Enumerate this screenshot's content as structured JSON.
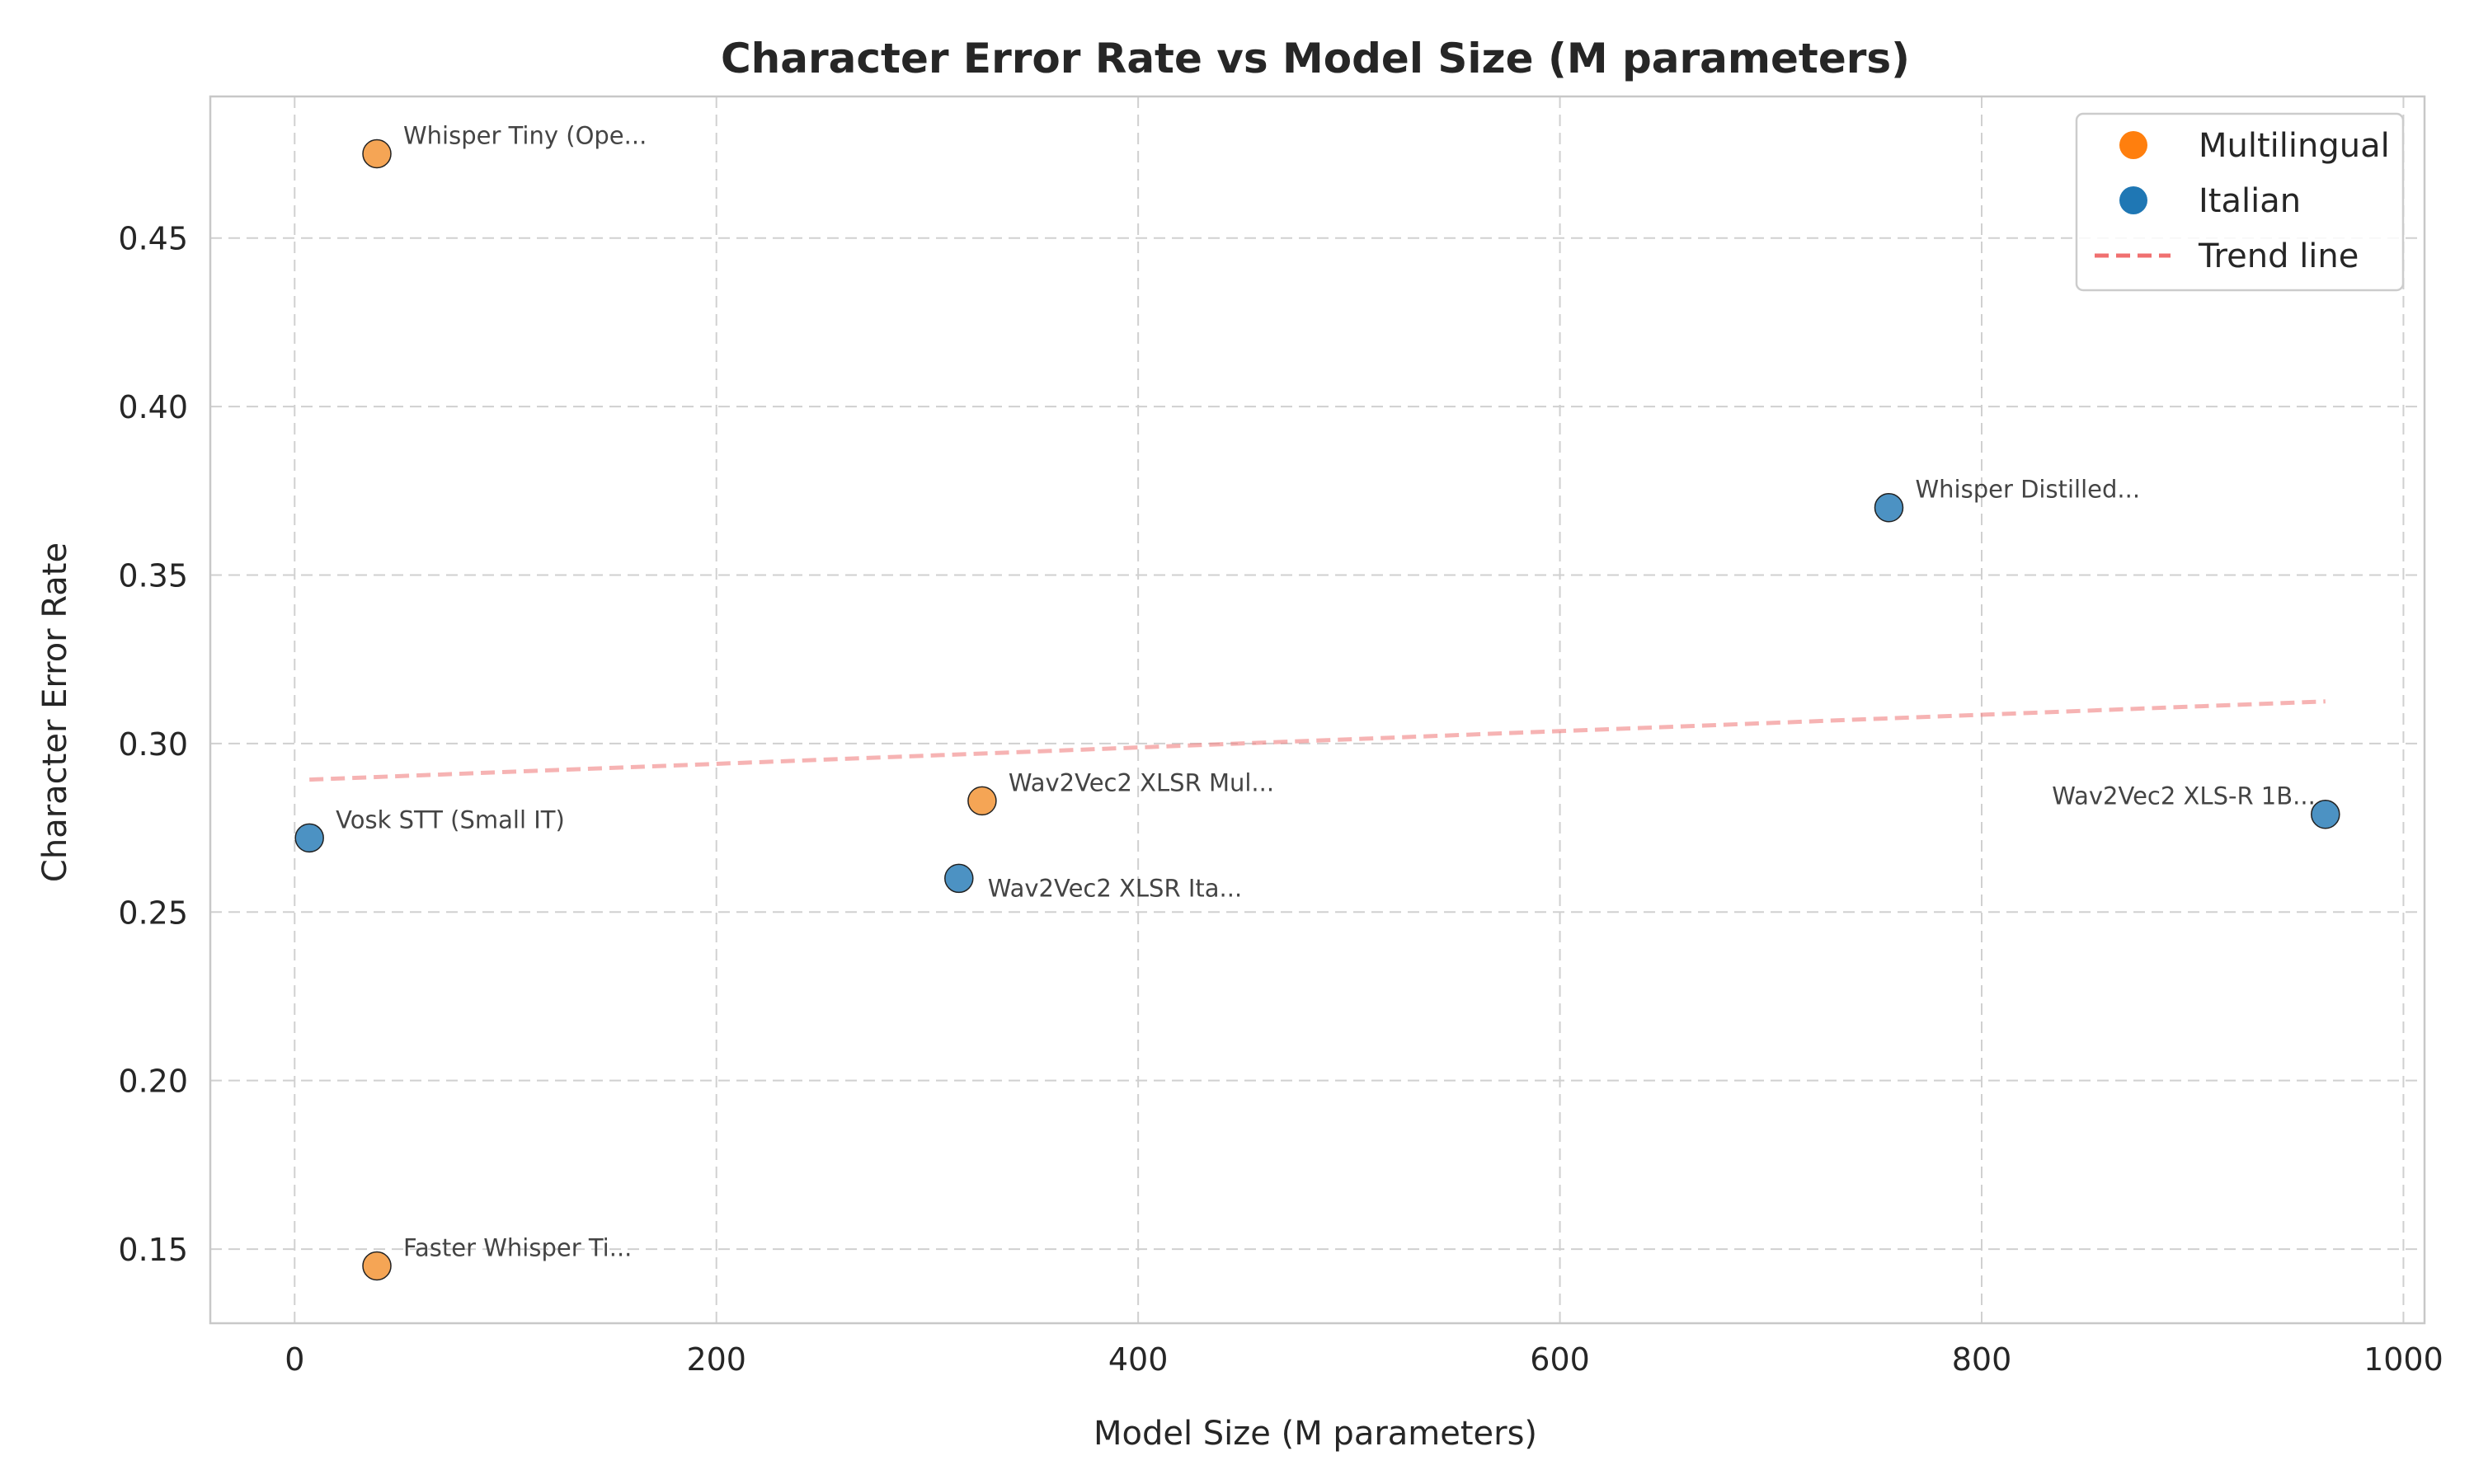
{
  "chart_data": {
    "type": "scatter",
    "title": "Character Error Rate vs Model Size (M parameters)",
    "xlabel": "Model Size (M parameters)",
    "ylabel": "Character Error Rate",
    "xlim": [
      -40,
      1010
    ],
    "ylim": [
      0.128,
      0.492
    ],
    "x_ticks": [
      0,
      200,
      400,
      600,
      800,
      1000
    ],
    "y_ticks": [
      0.15,
      0.2,
      0.25,
      0.3,
      0.35,
      0.4,
      0.45
    ],
    "y_tick_labels": [
      "0.15",
      "0.20",
      "0.25",
      "0.30",
      "0.35",
      "0.40",
      "0.45"
    ],
    "grid": true,
    "legend_position": "top-right",
    "colors": {
      "Multilingual": "#f28e2b",
      "Italian": "#1f77b4",
      "trend": "#f08080"
    },
    "legend": [
      {
        "label": "Multilingual",
        "kind": "marker",
        "color": "#ff7f0e"
      },
      {
        "label": "Italian",
        "kind": "marker",
        "color": "#1f77b4"
      },
      {
        "label": "Trend line",
        "kind": "dashed-line",
        "color": "#f07070"
      }
    ],
    "points": [
      {
        "label": "Whisper Tiny (Ope...",
        "group": "Multilingual",
        "x": 39,
        "y": 0.475,
        "label_side": "right"
      },
      {
        "label": "Faster Whisper Ti...",
        "group": "Multilingual",
        "x": 39,
        "y": 0.145,
        "label_side": "right"
      },
      {
        "label": "Wav2Vec2 XLSR Mul...",
        "group": "Multilingual",
        "x": 326,
        "y": 0.283,
        "label_side": "right"
      },
      {
        "label": "Vosk STT (Small IT)",
        "group": "Italian",
        "x": 7,
        "y": 0.272,
        "label_side": "right"
      },
      {
        "label": "Wav2Vec2 XLSR Ita...",
        "group": "Italian",
        "x": 315,
        "y": 0.26,
        "label_side": "right-below"
      },
      {
        "label": "Whisper Distilled...",
        "group": "Italian",
        "x": 756,
        "y": 0.37,
        "label_side": "right"
      },
      {
        "label": "Wav2Vec2 XLS-R 1B...",
        "group": "Italian",
        "x": 963,
        "y": 0.279,
        "label_side": "left"
      }
    ],
    "trend_line": {
      "x": [
        7,
        963
      ],
      "y": [
        0.2893,
        0.3125
      ]
    }
  }
}
